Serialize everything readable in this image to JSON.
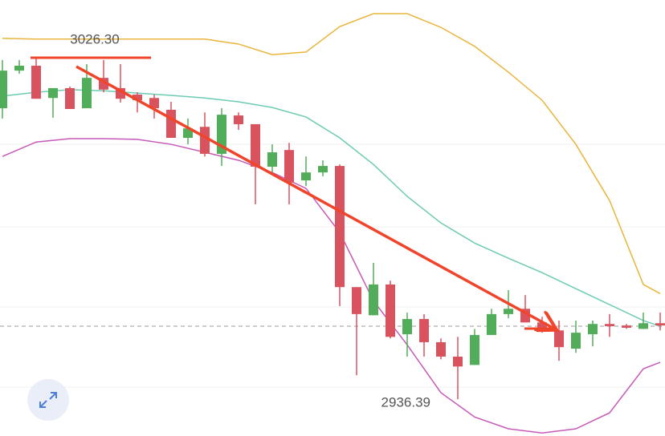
{
  "chart_data": {
    "type": "candlestick",
    "ylim": [
      2926.7,
      3041.5
    ],
    "up_color": "#52ad5a",
    "down_color": "#d9535f",
    "max_label": "3026.30",
    "min_label": "2936.39",
    "candles": [
      {
        "o": 3013.0,
        "h": 3025.7,
        "l": 3010.3,
        "c": 3022.9
      },
      {
        "o": 3022.9,
        "h": 3025.7,
        "l": 3022.1,
        "c": 3024.2
      },
      {
        "o": 3024.2,
        "h": 3026.3,
        "l": 3015.5,
        "c": 3015.5
      },
      {
        "o": 3015.7,
        "h": 3018.3,
        "l": 3010.5,
        "c": 3018.3
      },
      {
        "o": 3018.3,
        "h": 3018.7,
        "l": 3012.8,
        "c": 3012.8
      },
      {
        "o": 3013.0,
        "h": 3024.6,
        "l": 3013.0,
        "c": 3021.0
      },
      {
        "o": 3021.0,
        "h": 3025.7,
        "l": 3017.2,
        "c": 3017.9
      },
      {
        "o": 3018.3,
        "h": 3024.6,
        "l": 3014.5,
        "c": 3015.5
      },
      {
        "o": 3016.6,
        "h": 3017.2,
        "l": 3011.9,
        "c": 3015.1
      },
      {
        "o": 3015.7,
        "h": 3016.6,
        "l": 3010.3,
        "c": 3013.0
      },
      {
        "o": 3012.6,
        "h": 3014.7,
        "l": 3005.2,
        "c": 3005.2
      },
      {
        "o": 3005.2,
        "h": 3010.3,
        "l": 3003.5,
        "c": 3007.7
      },
      {
        "o": 3008.1,
        "h": 3011.9,
        "l": 3000.3,
        "c": 3001.0
      },
      {
        "o": 3001.0,
        "h": 3013.0,
        "l": 2997.8,
        "c": 3011.3
      },
      {
        "o": 3011.1,
        "h": 3011.9,
        "l": 3007.3,
        "c": 3008.8
      },
      {
        "o": 3008.8,
        "h": 3008.8,
        "l": 2987.7,
        "c": 2997.6
      },
      {
        "o": 2997.6,
        "h": 3003.5,
        "l": 2996.1,
        "c": 3001.4
      },
      {
        "o": 3002.0,
        "h": 3003.9,
        "l": 2987.7,
        "c": 2993.4
      },
      {
        "o": 2994.0,
        "h": 3000.3,
        "l": 2992.5,
        "c": 2996.1
      },
      {
        "o": 2996.1,
        "h": 2999.3,
        "l": 2995.1,
        "c": 2997.8
      },
      {
        "o": 2997.8,
        "h": 2998.2,
        "l": 2960.9,
        "c": 2965.9
      },
      {
        "o": 2965.9,
        "h": 2965.9,
        "l": 2942.7,
        "c": 2958.8
      },
      {
        "o": 2958.5,
        "h": 2972.3,
        "l": 2958.5,
        "c": 2966.6
      },
      {
        "o": 2966.6,
        "h": 2967.6,
        "l": 2952.4,
        "c": 2952.8
      },
      {
        "o": 2953.5,
        "h": 2959.2,
        "l": 2947.6,
        "c": 2957.5
      },
      {
        "o": 2957.5,
        "h": 2958.8,
        "l": 2947.6,
        "c": 2951.4
      },
      {
        "o": 2951.4,
        "h": 2952.4,
        "l": 2946.9,
        "c": 2947.6
      },
      {
        "o": 2947.6,
        "h": 2952.8,
        "l": 2936.39,
        "c": 2945.0
      },
      {
        "o": 2945.4,
        "h": 2954.9,
        "l": 2945.4,
        "c": 2953.3
      },
      {
        "o": 2953.3,
        "h": 2960.2,
        "l": 2953.3,
        "c": 2958.8
      },
      {
        "o": 2958.8,
        "h": 2965.1,
        "l": 2957.7,
        "c": 2960.2
      },
      {
        "o": 2960.2,
        "h": 2963.8,
        "l": 2956.6,
        "c": 2956.6
      },
      {
        "o": 2956.6,
        "h": 2958.1,
        "l": 2953.9,
        "c": 2954.9
      },
      {
        "o": 2954.5,
        "h": 2957.1,
        "l": 2946.5,
        "c": 2950.1
      },
      {
        "o": 2949.7,
        "h": 2957.1,
        "l": 2948.6,
        "c": 2953.9
      },
      {
        "o": 2953.5,
        "h": 2957.1,
        "l": 2950.3,
        "c": 2956.2
      },
      {
        "o": 2956.2,
        "h": 2958.8,
        "l": 2952.8,
        "c": 2955.6
      },
      {
        "o": 2955.8,
        "h": 2956.2,
        "l": 2954.9,
        "c": 2955.2
      },
      {
        "o": 2954.9,
        "h": 2959.2,
        "l": 2954.9,
        "c": 2956.4
      },
      {
        "o": 2956.4,
        "h": 2959.2,
        "l": 2954.5,
        "c": 2955.8
      }
    ],
    "series": [
      {
        "color": "#e9b53c",
        "x": [
          0,
          2,
          4,
          6,
          8,
          10,
          12,
          14,
          16,
          18,
          20,
          22,
          24,
          26,
          28,
          30,
          32,
          34,
          36,
          38,
          39
        ],
        "values": [
          3031.4,
          3031.2,
          3031.2,
          3031.2,
          3031.2,
          3031.2,
          3031.2,
          3029.9,
          3027.1,
          3027.8,
          3034.5,
          3037.9,
          3037.9,
          3034.3,
          3029.3,
          3022.5,
          3015.1,
          3003.5,
          2988.7,
          2966.6,
          2964.2
        ]
      },
      {
        "color": "#6ccbb2",
        "x": [
          0,
          2,
          4,
          6,
          8,
          10,
          12,
          14,
          16,
          18,
          20,
          22,
          24,
          26,
          28,
          30,
          32,
          34,
          36,
          38,
          39
        ],
        "values": [
          3016.2,
          3017.2,
          3017.9,
          3017.6,
          3017.0,
          3016.4,
          3015.7,
          3014.7,
          3013.2,
          3010.7,
          3005.2,
          2998.2,
          2989.8,
          2982.8,
          2977.5,
          2973.5,
          2969.7,
          2965.5,
          2961.3,
          2957.1,
          2955.6
        ]
      },
      {
        "color": "#c65ab8",
        "x": [
          0,
          2,
          4,
          6,
          8,
          10,
          12,
          14,
          16,
          18,
          20,
          22,
          24,
          26,
          28,
          30,
          32,
          34,
          36,
          38,
          39
        ],
        "values": [
          3000.3,
          3004.1,
          3005.0,
          3005.0,
          3004.8,
          3003.5,
          3001.4,
          2999.3,
          2996.1,
          2991.9,
          2980.3,
          2962.3,
          2950.7,
          2938.1,
          2931.7,
          2928.6,
          2927.5,
          2928.6,
          2932.8,
          2944.4,
          2946.1
        ]
      }
    ]
  }
}
